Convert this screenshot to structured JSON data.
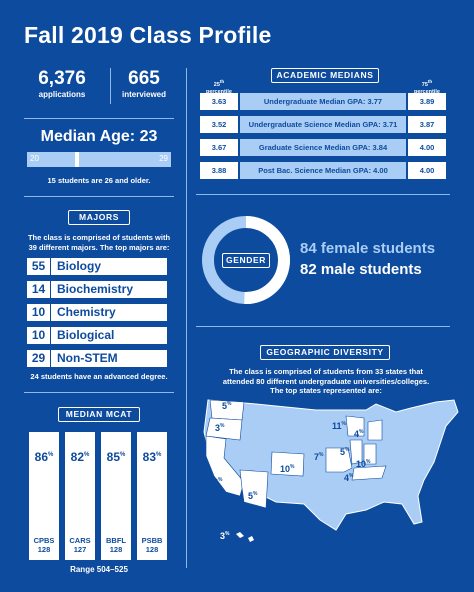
{
  "title": "Fall 2019 Class Profile",
  "applications": {
    "value": "6,376",
    "label": "applications"
  },
  "interviewed": {
    "value": "665",
    "label": "interviewed"
  },
  "age": {
    "heading": "Median Age: 23",
    "range_low": "20",
    "range_high": "29",
    "median_fraction": 0.333,
    "note": "15 students are 26 and older."
  },
  "majors": {
    "heading": "MAJORS",
    "intro": "The class is comprised of students with 39 different majors. The top majors are:",
    "items": [
      {
        "count": "55",
        "name": "Biology"
      },
      {
        "count": "14",
        "name": "Biochemistry"
      },
      {
        "count": "10",
        "name": "Chemistry"
      },
      {
        "count": "10",
        "name": "Biological Sciences"
      },
      {
        "count": "29",
        "name": "Non-STEM"
      }
    ],
    "note": "24 students have an advanced degree."
  },
  "mcat": {
    "heading": "MEDIAN MCAT",
    "sections": [
      {
        "percentile": "86",
        "name": "CPBS",
        "score": "128"
      },
      {
        "percentile": "82",
        "name": "CARS",
        "score": "127"
      },
      {
        "percentile": "85",
        "name": "BBFL",
        "score": "128"
      },
      {
        "percentile": "83",
        "name": "PSBB",
        "score": "128"
      }
    ],
    "pct_sign": "%",
    "range": "Range 504–525"
  },
  "medians": {
    "heading": "ACADEMIC MEDIANS",
    "col_low": {
      "num": "25",
      "sup": "th",
      "word": "percentile"
    },
    "col_high": {
      "num": "75",
      "sup": "th",
      "word": "percentile"
    },
    "rows": [
      {
        "low": "3.63",
        "label": "Undergraduate Median GPA: 3.77",
        "high": "3.89"
      },
      {
        "low": "3.52",
        "label": "Undergraduate Science Median GPA: 3.71",
        "high": "3.87"
      },
      {
        "low": "3.67",
        "label": "Graduate Science Median GPA: 3.84",
        "high": "4.00"
      },
      {
        "low": "3.88",
        "label": "Post Bac. Science Median GPA: 4.00",
        "high": "4.00"
      }
    ]
  },
  "gender": {
    "label": "GENDER",
    "female": "84 female students",
    "male": "82 male students",
    "female_count": 84,
    "male_count": 82
  },
  "geo": {
    "heading": "GEOGRAPHIC DIVERSITY",
    "intro": "The class is comprised of students from 33 states that attended 80 different undergraduate universities/colleges. The top states represented are:",
    "states": [
      {
        "state": "WA",
        "pct": "5"
      },
      {
        "state": "OR",
        "pct": "3"
      },
      {
        "state": "CA",
        "pct": "13"
      },
      {
        "state": "AZ",
        "pct": "5"
      },
      {
        "state": "CO",
        "pct": "10"
      },
      {
        "state": "MO",
        "pct": "7"
      },
      {
        "state": "WI",
        "pct": "11"
      },
      {
        "state": "MI",
        "pct": "4"
      },
      {
        "state": "IL",
        "pct": "5"
      },
      {
        "state": "IN",
        "pct": "10"
      },
      {
        "state": "KY",
        "pct": "4"
      },
      {
        "state": "HI",
        "pct": "3"
      }
    ]
  },
  "colors": {
    "background": "#0d4b9e",
    "light": "#a9cdf5",
    "white": "#ffffff"
  }
}
